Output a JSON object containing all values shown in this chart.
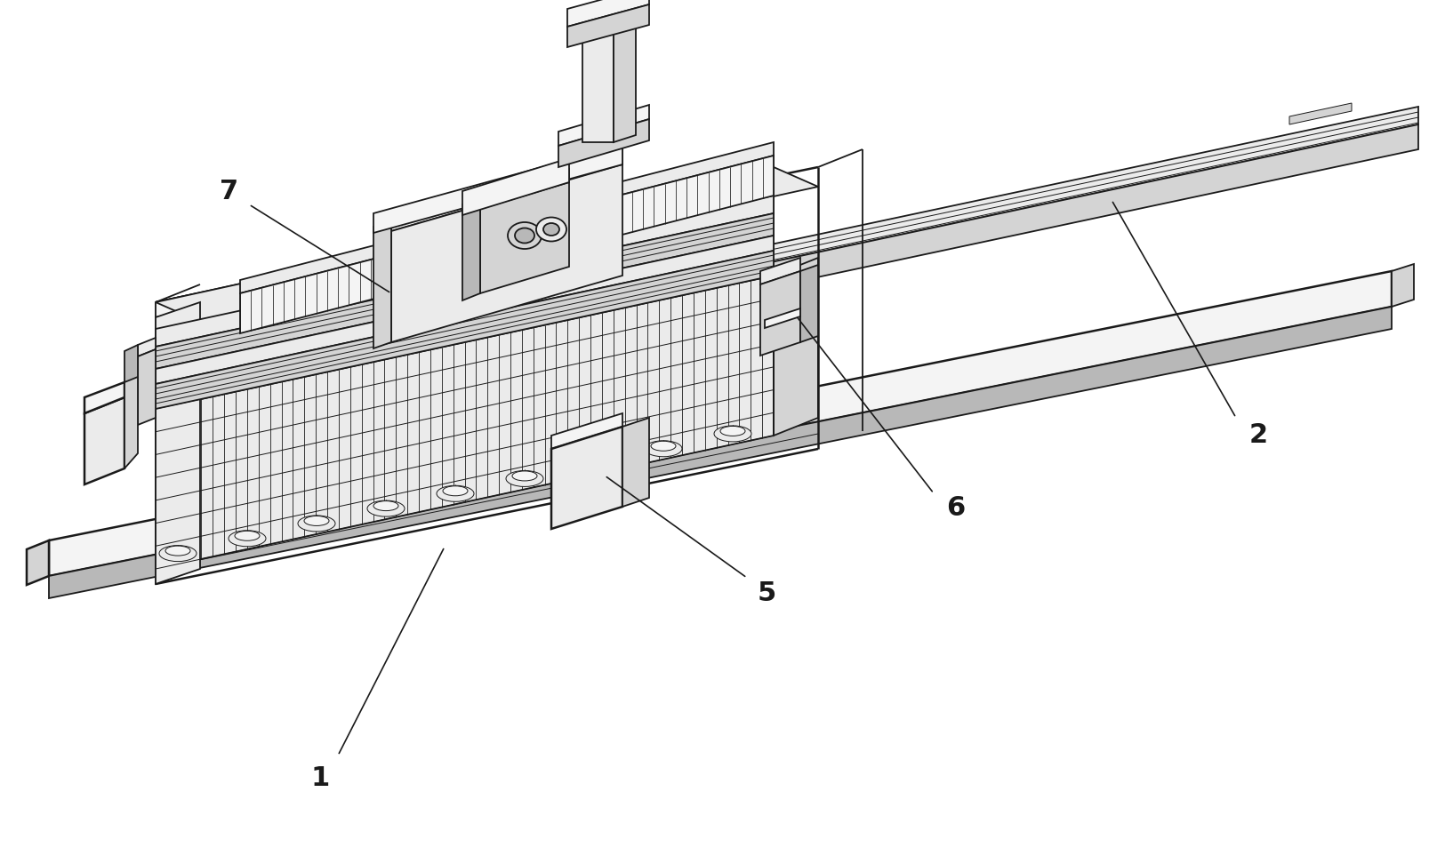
{
  "bg_color": "#ffffff",
  "lc": "#1a1a1a",
  "lw": 1.3,
  "lw_thin": 0.7,
  "lw_thick": 1.8,
  "fl": "#ebebeb",
  "fm": "#d4d4d4",
  "fd": "#b8b8b8",
  "fw": "#f4f4f4",
  "fs_label": 22
}
